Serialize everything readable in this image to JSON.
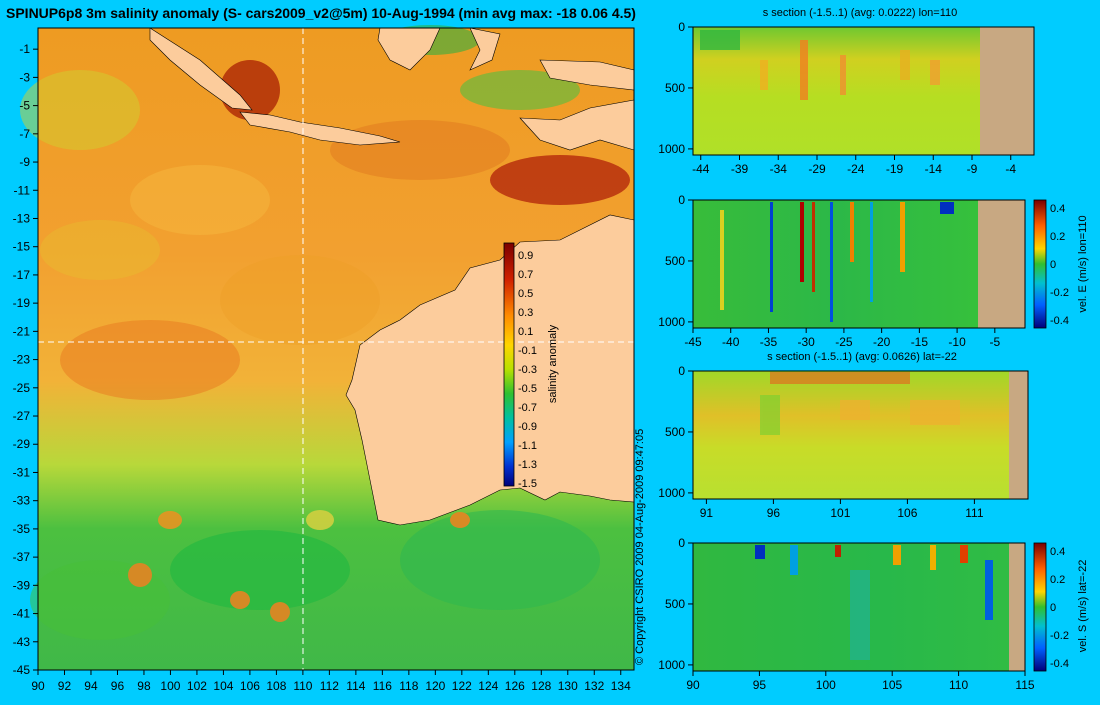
{
  "title": "SPINUP6p8 3m salinity anomaly (S- cars2009_v2@5m) 10-Aug-1994 (min avg max: -18 0.06 4.5)",
  "copyright": "© Copyright CSIRO 2009   04-Aug-2009 09:47:05",
  "colors": {
    "background": "#00ccff",
    "land": "#fccc9c",
    "section_land": "#c8a882"
  },
  "chart_data": [
    {
      "type": "heatmap",
      "name": "map",
      "x_ticks": [
        90,
        92,
        94,
        96,
        98,
        100,
        102,
        104,
        106,
        108,
        110,
        112,
        114,
        116,
        118,
        120,
        122,
        124,
        126,
        128,
        130,
        132,
        134
      ],
      "y_ticks": [
        -1,
        -3,
        -5,
        -7,
        -9,
        -11,
        -13,
        -15,
        -17,
        -19,
        -21,
        -23,
        -25,
        -27,
        -29,
        -31,
        -33,
        -35,
        -37,
        -39,
        -41,
        -43,
        -45
      ],
      "xlim": [
        90,
        135
      ],
      "ylim": [
        -45,
        0.5
      ],
      "guides": {
        "lon": 110,
        "lat": -22
      },
      "colorbar": {
        "label": "salinity anomaly",
        "ticks": [
          "0.9",
          "0.7",
          "0.5",
          "0.3",
          "0.1",
          "-0.1",
          "-0.3",
          "-0.5",
          "-0.7",
          "-0.9",
          "-1.1",
          "-1.3",
          "-1.5"
        ]
      }
    },
    {
      "type": "heatmap",
      "name": "section-1",
      "title": "s section (-1.5..1) (avg: 0.0222) lon=110",
      "x_ticks": [
        "-44",
        "-39",
        "-34",
        "-29",
        "-24",
        "-19",
        "-14",
        "-9",
        "-4"
      ],
      "y_ticks": [
        "0",
        "500",
        "1000"
      ],
      "xlim": [
        -45,
        -1
      ],
      "ylim": [
        0,
        1050
      ]
    },
    {
      "type": "heatmap",
      "name": "section-2",
      "x_ticks": [
        "-45",
        "-40",
        "-35",
        "-30",
        "-25",
        "-20",
        "-15",
        "-10",
        "-5"
      ],
      "y_ticks": [
        "0",
        "500",
        "1000"
      ],
      "xlim": [
        -45,
        -1
      ],
      "ylim": [
        0,
        1050
      ],
      "colorbar": {
        "label": "vel. E (m/s) lon=110",
        "ticks": [
          "0.4",
          "0.2",
          "0",
          "-0.2",
          "-0.4"
        ]
      }
    },
    {
      "type": "heatmap",
      "name": "section-3",
      "title": "s section (-1.5..1) (avg: 0.0626) lat=-22",
      "x_ticks": [
        "91",
        "96",
        "101",
        "106",
        "111"
      ],
      "y_ticks": [
        "0",
        "500",
        "1000"
      ],
      "xlim": [
        90,
        115
      ],
      "ylim": [
        0,
        1050
      ]
    },
    {
      "type": "heatmap",
      "name": "section-4",
      "x_ticks": [
        "90",
        "95",
        "100",
        "105",
        "110",
        "115"
      ],
      "y_ticks": [
        "0",
        "500",
        "1000"
      ],
      "xlim": [
        90,
        115
      ],
      "ylim": [
        0,
        1050
      ],
      "colorbar": {
        "label": "vel. S (m/s) lat=-22",
        "ticks": [
          "0.4",
          "0.2",
          "0",
          "-0.2",
          "-0.4"
        ]
      }
    }
  ]
}
